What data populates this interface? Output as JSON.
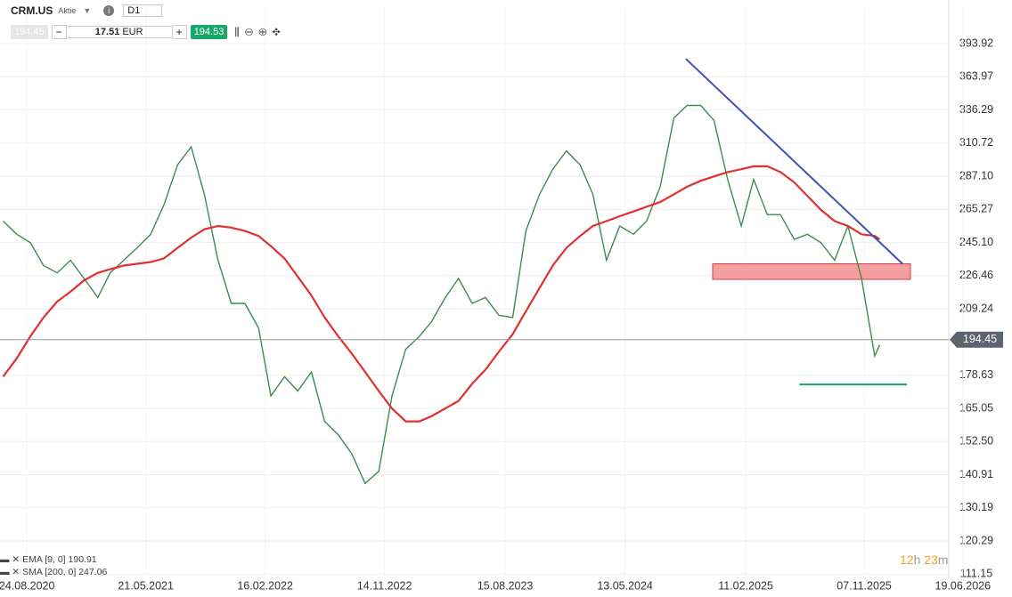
{
  "toolbar": {
    "symbol": "CRM.US",
    "kind": "Aktie",
    "interval": "D1",
    "bid": {
      "value": 194.45,
      "label": "194.45"
    },
    "volume": "17.51",
    "currency": "EUR",
    "ask": {
      "value": 194.53,
      "label": "194.53"
    }
  },
  "indicators": [
    {
      "name": "EMA [9, 0]",
      "value": 190.91
    },
    {
      "name": "SMA [200, 0]",
      "value": 247.06
    }
  ],
  "timer": [
    "12",
    "h",
    "23",
    "m"
  ],
  "chart_data": {
    "type": "line",
    "log_scale": true,
    "grid": true,
    "x": [
      "01.07.2020",
      "01.08.2020",
      "01.09.2020",
      "01.10.2020",
      "01.11.2020",
      "01.12.2020",
      "01.01.2021",
      "01.02.2021",
      "01.03.2021",
      "01.04.2021",
      "01.05.2021",
      "01.06.2021",
      "01.07.2021",
      "01.08.2021",
      "01.09.2021",
      "01.10.2021",
      "01.11.2021",
      "01.12.2021",
      "01.01.2022",
      "01.02.2022",
      "01.03.2022",
      "01.04.2022",
      "01.05.2022",
      "01.06.2022",
      "01.07.2022",
      "01.08.2022",
      "01.09.2022",
      "01.10.2022",
      "01.11.2022",
      "01.12.2022",
      "01.01.2023",
      "01.02.2023",
      "01.03.2023",
      "01.04.2023",
      "01.05.2023",
      "01.06.2023",
      "01.07.2023",
      "01.08.2023",
      "01.09.2023",
      "01.10.2023",
      "01.11.2023",
      "01.12.2023",
      "01.01.2024",
      "01.02.2024",
      "01.03.2024",
      "01.04.2024",
      "01.05.2024",
      "01.06.2024",
      "01.07.2024",
      "01.08.2024",
      "01.09.2024",
      "01.10.2024",
      "01.11.2024",
      "01.12.2024",
      "01.01.2025",
      "01.02.2025",
      "01.03.2025",
      "01.04.2025",
      "01.05.2025",
      "01.06.2025",
      "01.07.2025",
      "01.08.2025",
      "01.09.2025",
      "01.10.2025",
      "01.11.2025",
      "01.12.2025",
      "12.12.2025"
    ],
    "series": [
      {
        "name": "CRM.US",
        "color": "#3a8c4e",
        "values": [
          258,
          250,
          245,
          232,
          228,
          235,
          225,
          215,
          228,
          235,
          242,
          250,
          268,
          295,
          308,
          275,
          235,
          212,
          212,
          200,
          170,
          178,
          172,
          180,
          160,
          155,
          148,
          138,
          142,
          170,
          190,
          196,
          203,
          215,
          225,
          212,
          215,
          206,
          205,
          252,
          275,
          292,
          305,
          295,
          275,
          235,
          255,
          250,
          258,
          280,
          330,
          340,
          340,
          328,
          285,
          255,
          285,
          262,
          262,
          247,
          250,
          245,
          235,
          255,
          225,
          187,
          192
        ]
      },
      {
        "name": "SMA [200, 0]",
        "color": "#e03030",
        "values": [
          178,
          186,
          196,
          205,
          213,
          218,
          224,
          228,
          230,
          232,
          233,
          234,
          236,
          242,
          248,
          253,
          255,
          254,
          252,
          249,
          243,
          236,
          226,
          216,
          205,
          196,
          188,
          180,
          172,
          165,
          160,
          160,
          162,
          165,
          168,
          175,
          181,
          189,
          197,
          208,
          220,
          232,
          242,
          249,
          255,
          258,
          261,
          264,
          267,
          270,
          275,
          280,
          284,
          287,
          290,
          292,
          294,
          294,
          290,
          283,
          274,
          265,
          258,
          255,
          250,
          249,
          247
        ]
      }
    ],
    "xlim": [
      "24.06.2020",
      "18.05.2026"
    ],
    "xticks": [
      "24.08.2020",
      "21.05.2021",
      "16.02.2022",
      "14.11.2022",
      "15.08.2023",
      "13.05.2024",
      "11.02.2025",
      "07.11.2025",
      "19.06.2026"
    ],
    "ylim": [
      110.5,
      428
    ],
    "yticks": [
      393.92,
      363.97,
      336.29,
      310.72,
      {
        "value": 287.1,
        "label": "287.10"
      },
      265.27,
      {
        "value": 245.1,
        "label": "245.10"
      },
      226.46,
      209.24,
      178.63,
      165.05,
      {
        "value": 152.5,
        "label": "152.50"
      },
      140.91,
      130.19,
      120.29,
      111.15
    ],
    "last_price": {
      "value": 194.45,
      "label": "194.45"
    },
    "trendline": {
      "x": [
        "28.09.2024",
        "02.02.2026"
      ],
      "values": [
        380,
        233
      ],
      "color": "#3f51b5"
    },
    "zone": {
      "x": [
        "28.11.2024",
        "20.02.2026"
      ],
      "values": [
        233,
        224.5
      ],
      "color": "#f08080"
    },
    "support": {
      "x": [
        "13.06.2025",
        "12.02.2026"
      ],
      "values": [
        174.7,
        174.7
      ],
      "color": "#1aa060"
    }
  }
}
